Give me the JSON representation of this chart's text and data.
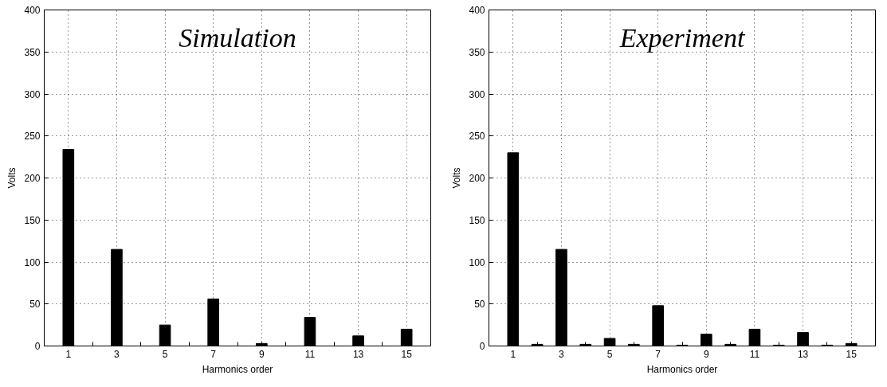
{
  "chart_data": [
    {
      "type": "bar",
      "title": "Simulation",
      "xlabel": "Harmonics order",
      "ylabel": "Volts",
      "x": [
        1,
        3,
        5,
        7,
        9,
        11,
        13,
        15
      ],
      "series": [
        {
          "color": "#000000",
          "values": [
            234,
            115,
            25,
            56,
            3,
            34,
            12,
            20
          ]
        }
      ],
      "xlim": [
        0,
        16
      ],
      "ylim": [
        0,
        400
      ],
      "xticks": [
        1,
        {
          "value": 2,
          "label": null
        },
        3,
        {
          "value": 4,
          "label": null
        },
        5,
        {
          "value": 6,
          "label": null
        },
        7,
        {
          "value": 8,
          "label": null
        },
        9,
        {
          "value": 10,
          "label": null
        },
        11,
        {
          "value": 12,
          "label": null
        },
        13,
        {
          "value": 14,
          "label": null
        },
        15
      ],
      "yticks": [
        0,
        50,
        100,
        150,
        200,
        250,
        300,
        350,
        400
      ],
      "grid": true
    },
    {
      "type": "bar",
      "title": "Experiment",
      "xlabel": "Harmonics order",
      "ylabel": "Volts",
      "x": [
        1,
        2,
        3,
        4,
        5,
        6,
        7,
        8,
        9,
        10,
        11,
        12,
        13,
        14,
        15
      ],
      "series": [
        {
          "color": "#000000",
          "values": [
            230,
            2,
            115,
            2,
            9,
            2,
            48,
            1,
            14,
            2,
            20,
            1,
            16,
            1,
            3
          ]
        }
      ],
      "xlim": [
        0,
        16
      ],
      "ylim": [
        0,
        400
      ],
      "xticks": [
        1,
        {
          "value": 2,
          "label": null
        },
        3,
        {
          "value": 4,
          "label": null
        },
        5,
        {
          "value": 6,
          "label": null
        },
        7,
        {
          "value": 8,
          "label": null
        },
        9,
        {
          "value": 10,
          "label": null
        },
        11,
        {
          "value": 12,
          "label": null
        },
        13,
        {
          "value": 14,
          "label": null
        },
        15
      ],
      "yticks": [
        0,
        50,
        100,
        150,
        200,
        250,
        300,
        350,
        400
      ],
      "grid": true
    }
  ]
}
